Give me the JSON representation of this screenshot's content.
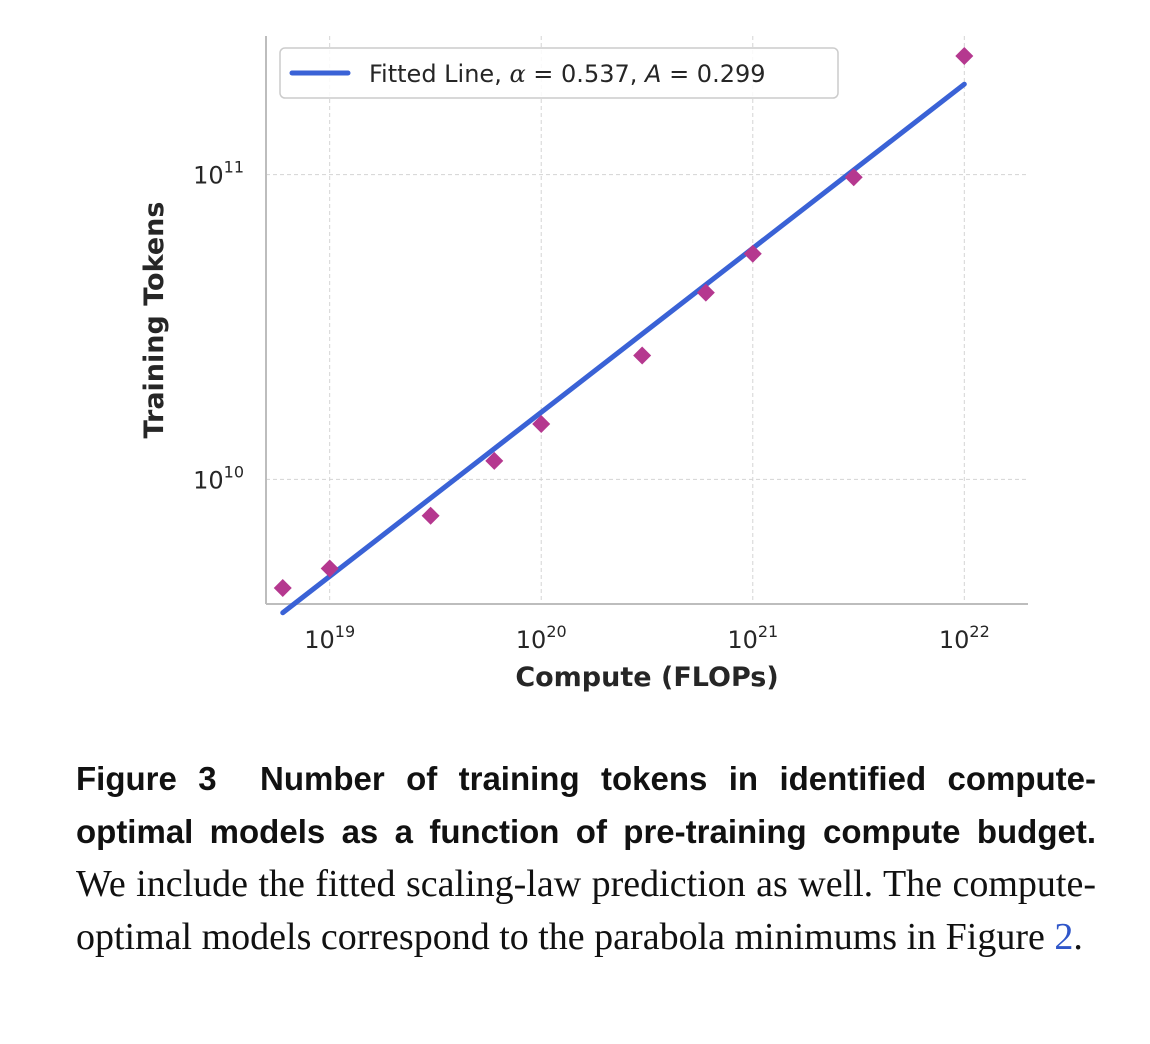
{
  "chart_data": {
    "type": "scatter",
    "xlabel": "Compute (FLOPs)",
    "ylabel": "Training Tokens",
    "xscale": "log",
    "yscale": "log",
    "xlim": [
      5e+18,
      2e+22
    ],
    "ylim": [
      3900000000.0,
      285000000000.0
    ],
    "x_ticks": [
      {
        "value": 1e+19,
        "base": "10",
        "exp": "19"
      },
      {
        "value": 1e+20,
        "base": "10",
        "exp": "20"
      },
      {
        "value": 1e+21,
        "base": "10",
        "exp": "21"
      },
      {
        "value": 1e+22,
        "base": "10",
        "exp": "22"
      }
    ],
    "y_ticks": [
      {
        "value": 10000000000.0,
        "base": "10",
        "exp": "10"
      },
      {
        "value": 100000000000.0,
        "base": "10",
        "exp": "11"
      }
    ],
    "grid": true,
    "legend_position": "top-left",
    "series": [
      {
        "kind": "scatter",
        "marker": "diamond",
        "color": "#b5388f",
        "x": [
          6e+18,
          1e+19,
          3e+19,
          6e+19,
          1e+20,
          3e+20,
          6e+20,
          1e+21,
          3e+21,
          1e+22
        ],
        "y": [
          4400000000.0,
          5100000000.0,
          7600000000.0,
          11500000000.0,
          15200000000.0,
          25500000000.0,
          41000000000.0,
          55000000000.0,
          98000000000.0,
          245000000000.0
        ]
      },
      {
        "kind": "line",
        "name": "Fitted Line, ",
        "legend_alpha_symbol": "α",
        "legend_alpha_value": " = 0.537, ",
        "legend_A_symbol": "A",
        "legend_A_value": " = 0.299",
        "color": "#3a62d6",
        "x": [
          6e+18,
          1e+22
        ],
        "y": [
          3650000000.0,
          198000000000.0
        ]
      }
    ]
  },
  "caption": {
    "label": "Figure 3",
    "bold_text": "Number of training tokens in identified compute-optimal models as a function of pre-training compute budget.",
    "text_before_ref": " We include the fitted scaling-law prediction as well. The compute-optimal models correspond to the parabola minimums in Figure ",
    "ref": "2",
    "text_after_ref": "."
  }
}
